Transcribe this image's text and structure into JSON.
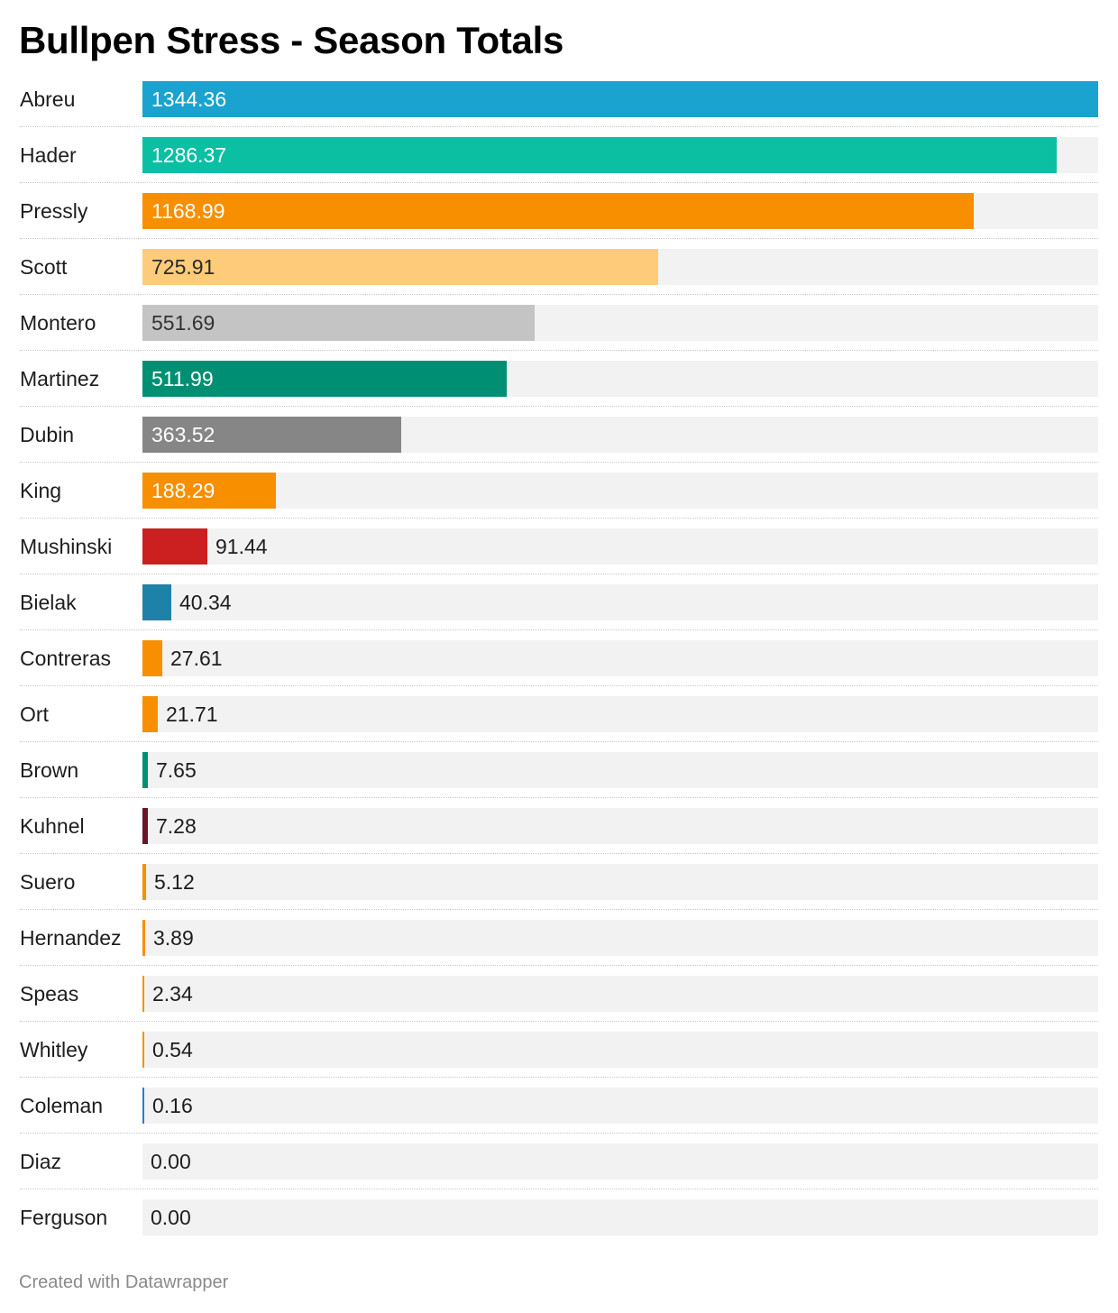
{
  "title": "Bullpen Stress - Season Totals",
  "footer": "Created with Datawrapper",
  "chart_data": {
    "type": "bar",
    "orientation": "horizontal",
    "title": "Bullpen Stress - Season Totals",
    "xlim": [
      0,
      1344.36
    ],
    "grid": false,
    "categories": [
      "Abreu",
      "Hader",
      "Pressly",
      "Scott",
      "Montero",
      "Martinez",
      "Dubin",
      "King",
      "Mushinski",
      "Bielak",
      "Contreras",
      "Ort",
      "Brown",
      "Kuhnel",
      "Suero",
      "Hernandez",
      "Speas",
      "Whitley",
      "Coleman",
      "Diaz",
      "Ferguson"
    ],
    "values": [
      1344.36,
      1286.37,
      1168.99,
      725.91,
      551.69,
      511.99,
      363.52,
      188.29,
      91.44,
      40.34,
      27.61,
      21.71,
      7.65,
      7.28,
      5.12,
      3.89,
      2.34,
      0.54,
      0.16,
      0.0,
      0.0
    ],
    "value_labels": [
      "1344.36",
      "1286.37",
      "1168.99",
      "725.91",
      "551.69",
      "511.99",
      "363.52",
      "188.29",
      "91.44",
      "40.34",
      "27.61",
      "21.71",
      "7.65",
      "7.28",
      "5.12",
      "3.89",
      "2.34",
      "0.54",
      "0.16",
      "0.00",
      "0.00"
    ],
    "colors": [
      "#1ba3cf",
      "#0bbfa3",
      "#f78f00",
      "#fdcb79",
      "#c4c4c4",
      "#008f72",
      "#868686",
      "#f78f00",
      "#cc1f1f",
      "#1e81a7",
      "#f78f00",
      "#f78f00",
      "#008f72",
      "#6e1428",
      "#f78f00",
      "#f78f00",
      "#f78f00",
      "#f78f00",
      "#1b80e0",
      "#f78f00",
      "#f78f00"
    ],
    "label_colors": [
      "#ffffff",
      "#ffffff",
      "#ffffff",
      "#2a2a2a",
      "#333333",
      "#ffffff",
      "#ffffff",
      "#ffffff",
      "#1d1d1d",
      "#1d1d1d",
      "#1d1d1d",
      "#1d1d1d",
      "#1d1d1d",
      "#1d1d1d",
      "#1d1d1d",
      "#1d1d1d",
      "#1d1d1d",
      "#1d1d1d",
      "#1d1d1d",
      "#1d1d1d",
      "#1d1d1d"
    ],
    "track_color": "#f2f2f2"
  }
}
